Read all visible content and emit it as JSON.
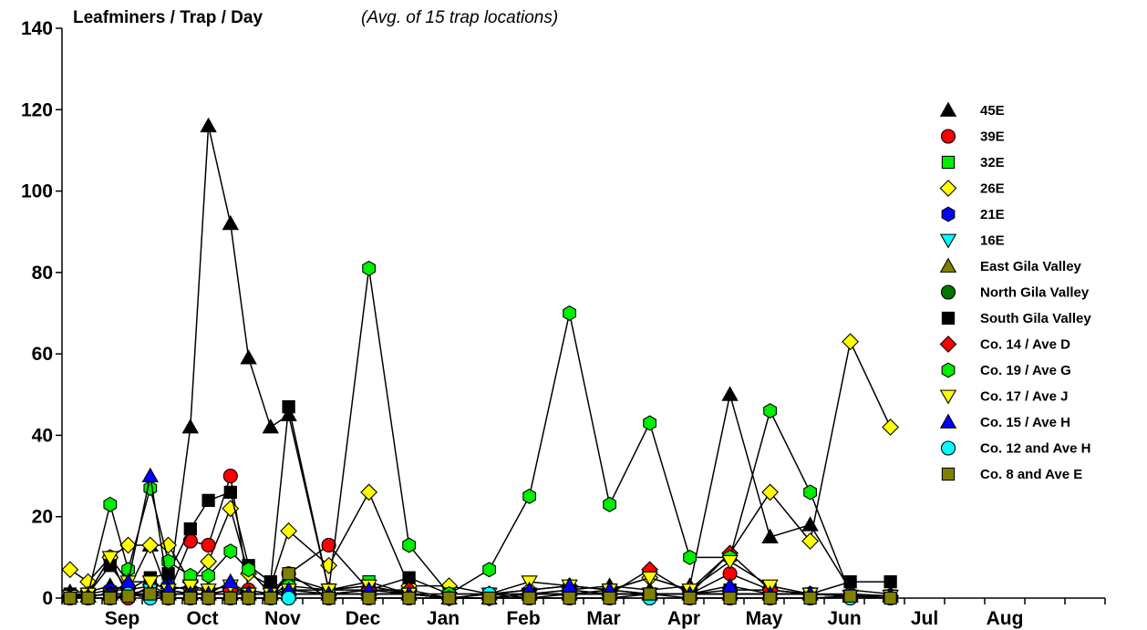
{
  "chart_data": {
    "type": "line",
    "title": "Leafminers / Trap / Day",
    "subtitle": "(Avg. of 15 trap locations)",
    "ylim": [
      0,
      140
    ],
    "yticks": [
      0,
      20,
      40,
      60,
      80,
      100,
      120,
      140
    ],
    "xlim": [
      0,
      26
    ],
    "month_labels": [
      {
        "label": "Sep",
        "x": 1.5
      },
      {
        "label": "Oct",
        "x": 3.5
      },
      {
        "label": "Nov",
        "x": 5.5
      },
      {
        "label": "Dec",
        "x": 7.5
      },
      {
        "label": "Jan",
        "x": 9.5
      },
      {
        "label": "Feb",
        "x": 11.5
      },
      {
        "label": "Mar",
        "x": 13.5
      },
      {
        "label": "Apr",
        "x": 15.5
      },
      {
        "label": "May",
        "x": 17.5
      },
      {
        "label": "Jun",
        "x": 19.5
      },
      {
        "label": "Jul",
        "x": 21.5
      },
      {
        "label": "Aug",
        "x": 23.5
      }
    ],
    "grid": false,
    "legend_position": "right",
    "series": [
      {
        "name": "45E",
        "marker": "triangle-up",
        "color": "#000000",
        "x": [
          0.2,
          0.65,
          1.2,
          1.65,
          2.2,
          2.65,
          3.2,
          3.65,
          4.2,
          4.65,
          5.2,
          5.65,
          6.65,
          7.65,
          8.65,
          9.65,
          10.65,
          11.65,
          12.65,
          13.65,
          14.65,
          15.65,
          16.65,
          17.65,
          18.65,
          19.65,
          20.65
        ],
        "y": [
          1.5,
          1.5,
          3,
          2,
          13,
          1,
          42,
          116,
          92,
          59,
          42,
          45,
          2,
          3,
          1,
          1,
          1,
          1,
          2,
          3,
          2,
          3,
          50,
          15,
          18,
          2,
          1
        ]
      },
      {
        "name": "39E",
        "marker": "circle",
        "color": "#ff0000",
        "x": [
          0.2,
          0.65,
          1.2,
          1.65,
          2.2,
          2.65,
          3.2,
          3.65,
          4.2,
          4.65,
          5.2,
          5.65,
          6.65,
          7.65,
          8.65,
          9.65,
          10.65,
          11.65,
          12.65,
          13.65,
          14.65,
          15.65,
          16.65,
          17.65,
          18.65,
          19.65,
          20.65
        ],
        "y": [
          0.5,
          1,
          10,
          0,
          3,
          1,
          14,
          13,
          30,
          2,
          1,
          6,
          13,
          2,
          1,
          0,
          0,
          0,
          1,
          1,
          1,
          1,
          6,
          2,
          1,
          0.5,
          0.5
        ]
      },
      {
        "name": "32E",
        "marker": "square",
        "color": "#00ee00",
        "x": [
          0.2,
          0.65,
          1.2,
          1.65,
          2.2,
          2.65,
          3.2,
          3.65,
          4.2,
          4.65,
          5.2,
          5.65,
          6.65,
          7.65,
          8.65,
          9.65,
          10.65,
          11.65,
          12.65,
          13.65,
          14.65,
          15.65,
          16.65,
          17.65,
          18.65,
          19.65,
          20.65
        ],
        "y": [
          0,
          0.5,
          1,
          1,
          1,
          2,
          1,
          1,
          2,
          1,
          1,
          5,
          2,
          4,
          1,
          0,
          0,
          1,
          1,
          2,
          1,
          1,
          1,
          1,
          1,
          0.5,
          0.5
        ]
      },
      {
        "name": "26E",
        "marker": "diamond",
        "color": "#ffff00",
        "x": [
          0.2,
          0.65,
          1.2,
          1.65,
          2.2,
          2.65,
          3.2,
          3.65,
          4.2,
          4.65,
          5.2,
          5.65,
          6.65,
          7.65,
          8.65,
          9.65,
          10.65,
          11.65,
          12.65,
          13.65,
          14.65,
          15.65,
          16.65,
          17.65,
          18.65,
          19.65,
          20.65
        ],
        "y": [
          7,
          4,
          10,
          13,
          13,
          13,
          4,
          9,
          22,
          6,
          3,
          16.5,
          8,
          26,
          3,
          3,
          1,
          2,
          3,
          2,
          5,
          2,
          11,
          26,
          14,
          63,
          42
        ]
      },
      {
        "name": "21E",
        "marker": "hexagon",
        "color": "#0000ff",
        "x": [
          0.2,
          0.65,
          1.2,
          1.65,
          2.2,
          2.65,
          3.2,
          3.65,
          4.2,
          4.65,
          5.2,
          5.65,
          6.65,
          7.65,
          8.65,
          9.65,
          10.65,
          11.65,
          12.65,
          13.65,
          14.65,
          15.65,
          16.65,
          17.65,
          18.65,
          19.65,
          20.65
        ],
        "y": [
          0.5,
          1,
          2,
          2,
          3,
          3,
          2,
          2,
          3,
          1,
          1,
          2,
          1,
          1,
          1,
          0,
          0,
          1,
          1,
          1,
          1,
          1,
          1,
          1,
          1,
          0.5,
          0.5
        ]
      },
      {
        "name": "16E",
        "marker": "triangle-down",
        "color": "#00ffff",
        "x": [
          0.2,
          0.65,
          1.2,
          1.65,
          2.2,
          2.65,
          3.2,
          3.65,
          4.2,
          4.65,
          5.2,
          5.65,
          6.65,
          7.65,
          8.65,
          9.65,
          10.65,
          11.65,
          12.65,
          13.65,
          14.65,
          15.65,
          16.65,
          17.65,
          18.65,
          19.65,
          20.65
        ],
        "y": [
          0.5,
          0.5,
          1,
          1,
          2,
          1,
          1,
          1,
          1,
          1,
          1,
          1,
          1,
          1,
          1,
          0,
          0,
          1,
          1,
          1,
          1,
          1,
          1,
          1,
          1,
          0.5,
          0.5
        ]
      },
      {
        "name": "East Gila Valley",
        "marker": "triangle-up",
        "color": "#808000",
        "x": [
          0.2,
          0.65,
          1.2,
          1.65,
          2.2,
          2.65,
          3.2,
          3.65,
          4.2,
          4.65,
          5.2,
          5.65,
          6.65,
          7.65,
          8.65,
          9.65,
          10.65,
          11.65,
          12.65,
          13.65,
          14.65,
          15.65,
          16.65,
          17.65,
          18.65,
          19.65,
          20.65
        ],
        "y": [
          0.5,
          0.5,
          1,
          1,
          2,
          1,
          1,
          1,
          1,
          1,
          1,
          1,
          1,
          1,
          1,
          0,
          0,
          1,
          1,
          1,
          1,
          1,
          1,
          1,
          1,
          0.5,
          0.5
        ]
      },
      {
        "name": "North Gila Valley",
        "marker": "circle",
        "color": "#007700",
        "x": [
          0.2,
          0.65,
          1.2,
          1.65,
          2.2,
          2.65,
          3.2,
          3.65,
          4.2,
          4.65,
          5.2,
          5.65,
          6.65,
          7.65,
          8.65,
          9.65,
          10.65,
          11.65,
          12.65,
          13.65,
          14.65,
          15.65,
          16.65,
          17.65,
          18.65,
          19.65,
          20.65
        ],
        "y": [
          0.5,
          0.5,
          1,
          1,
          1,
          1,
          1,
          1,
          1,
          1,
          1,
          1,
          1,
          1,
          1,
          0,
          0,
          1,
          1,
          1,
          1,
          1,
          1,
          1,
          1,
          0.5,
          0.5
        ]
      },
      {
        "name": "South Gila Valley",
        "marker": "square",
        "color": "#000000",
        "x": [
          0.2,
          0.65,
          1.2,
          1.65,
          2.2,
          2.65,
          3.2,
          3.65,
          4.2,
          4.65,
          5.2,
          5.65,
          6.65,
          7.65,
          8.65,
          9.65,
          10.65,
          11.65,
          12.65,
          13.65,
          14.65,
          15.65,
          16.65,
          17.65,
          18.65,
          19.65,
          20.65
        ],
        "y": [
          1,
          1,
          8,
          2,
          5,
          6,
          17,
          24,
          26,
          8,
          4,
          47,
          2,
          2,
          5,
          1,
          1,
          1,
          2,
          1,
          1,
          1,
          2,
          2,
          1,
          4,
          4
        ]
      },
      {
        "name": "Co. 14 / Ave D",
        "marker": "diamond",
        "color": "#ff0000",
        "x": [
          0.2,
          0.65,
          1.2,
          1.65,
          2.2,
          2.65,
          3.2,
          3.65,
          4.2,
          4.65,
          5.2,
          5.65,
          6.65,
          7.65,
          8.65,
          9.65,
          10.65,
          11.65,
          12.65,
          13.65,
          14.65,
          15.65,
          16.65,
          17.65,
          18.65,
          19.65,
          20.65
        ],
        "y": [
          0.5,
          0.5,
          1,
          1,
          1,
          1,
          1,
          1,
          2,
          1,
          1,
          1,
          1,
          2,
          2,
          0,
          0,
          1,
          1,
          1,
          7,
          1,
          11,
          2,
          1,
          0.5,
          0.5
        ]
      },
      {
        "name": "Co. 19 / Ave G",
        "marker": "hexagon",
        "color": "#00ee00",
        "x": [
          0.2,
          0.65,
          1.2,
          1.65,
          2.2,
          2.65,
          3.2,
          3.65,
          4.2,
          4.65,
          5.2,
          5.65,
          6.65,
          7.65,
          8.65,
          9.65,
          10.65,
          11.65,
          12.65,
          13.65,
          14.65,
          15.65,
          16.65,
          17.65,
          18.65,
          19.65,
          20.65
        ],
        "y": [
          0.5,
          1,
          23,
          7,
          27,
          9,
          5.5,
          5.5,
          11.5,
          7,
          1,
          3,
          2,
          81,
          13,
          1,
          7,
          25,
          70,
          23,
          43,
          10,
          10,
          46,
          26,
          1,
          0.5
        ]
      },
      {
        "name": "Co. 17 / Ave J",
        "marker": "triangle-down",
        "color": "#ffff00",
        "x": [
          0.2,
          0.65,
          1.2,
          1.65,
          2.2,
          2.65,
          3.2,
          3.65,
          4.2,
          4.65,
          5.2,
          5.65,
          6.65,
          7.65,
          8.65,
          9.65,
          10.65,
          11.65,
          12.65,
          13.65,
          14.65,
          15.65,
          16.65,
          17.65,
          18.65,
          19.65,
          20.65
        ],
        "y": [
          0.5,
          1,
          10,
          4,
          4,
          2,
          3,
          2,
          3,
          1,
          1,
          2,
          2,
          3,
          1,
          0,
          1,
          4,
          3,
          2,
          5,
          2,
          9,
          3,
          1,
          0.5,
          0.5
        ]
      },
      {
        "name": "Co. 15 / Ave H",
        "marker": "triangle-up",
        "color": "#0000ff",
        "x": [
          0.2,
          0.65,
          1.2,
          1.65,
          2.2,
          2.65,
          3.2,
          3.65,
          4.2,
          4.65,
          5.2,
          5.65,
          6.65,
          7.65,
          8.65,
          9.65,
          10.65,
          11.65,
          12.65,
          13.65,
          14.65,
          15.65,
          16.65,
          17.65,
          18.65,
          19.65,
          20.65
        ],
        "y": [
          0.5,
          0.5,
          1,
          4,
          30,
          2,
          1,
          1,
          4,
          1,
          1,
          2,
          1,
          2,
          1,
          0,
          1,
          2,
          3,
          2,
          1,
          1,
          3,
          1,
          1,
          1,
          0.5
        ]
      },
      {
        "name": "Co. 12 and Ave H",
        "marker": "circle",
        "color": "#00ffff",
        "x": [
          0.2,
          0.65,
          1.2,
          1.65,
          2.2,
          2.65,
          3.2,
          3.65,
          4.2,
          4.65,
          5.2,
          5.65,
          6.65,
          7.65,
          8.65,
          9.65,
          10.65,
          11.65,
          12.65,
          13.65,
          14.65,
          15.65,
          16.65,
          17.65,
          18.65,
          19.65,
          20.65
        ],
        "y": [
          0,
          0,
          0,
          1,
          0,
          0,
          0,
          0,
          0,
          0,
          0,
          0,
          0,
          0,
          0,
          0,
          1,
          0,
          0,
          0,
          0,
          0,
          0,
          0,
          0,
          0,
          0
        ]
      },
      {
        "name": "Co. 8 and Ave E",
        "marker": "square",
        "color": "#808000",
        "x": [
          0.2,
          0.65,
          1.2,
          1.65,
          2.2,
          2.65,
          3.2,
          3.65,
          4.2,
          4.65,
          5.2,
          5.65,
          6.65,
          7.65,
          8.65,
          9.65,
          10.65,
          11.65,
          12.65,
          13.65,
          14.65,
          15.65,
          16.65,
          17.65,
          18.65,
          19.65,
          20.65
        ],
        "y": [
          0,
          0,
          0,
          0.5,
          1,
          0,
          0,
          0,
          0,
          0,
          0,
          6,
          0,
          0,
          0,
          0,
          0,
          0,
          0,
          0,
          1,
          0,
          0,
          0,
          0,
          0.5,
          0
        ]
      }
    ]
  }
}
